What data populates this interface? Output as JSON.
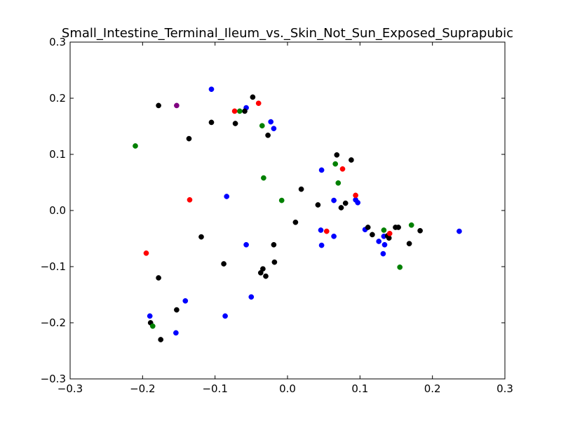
{
  "chart_data": {
    "type": "scatter",
    "title": "Small_Intestine_Terminal_Ileum_vs._Skin_Not_Sun_Exposed_Suprapubic",
    "xlabel": "",
    "ylabel": "",
    "xlim": [
      -0.3,
      0.3
    ],
    "ylim": [
      -0.3,
      0.3
    ],
    "xticks": [
      -0.3,
      -0.2,
      -0.1,
      0.0,
      0.1,
      0.2,
      0.3
    ],
    "yticks": [
      -0.3,
      -0.2,
      -0.1,
      0.0,
      0.1,
      0.2,
      0.3
    ],
    "xtick_labels": [
      "−0.3",
      "−0.2",
      "−0.1",
      "0.0",
      "0.1",
      "0.2",
      "0.3"
    ],
    "ytick_labels": [
      "−0.3",
      "−0.2",
      "−0.1",
      "0.0",
      "0.1",
      "0.2",
      "0.3"
    ],
    "grid": false,
    "legend": "none",
    "series": [
      {
        "color": "#0000ff",
        "points": [
          [
            -0.105,
            0.216
          ],
          [
            -0.057,
            0.183
          ],
          [
            -0.023,
            0.158
          ],
          [
            -0.019,
            0.146
          ],
          [
            0.047,
            0.072
          ],
          [
            -0.084,
            0.025
          ],
          [
            0.064,
            0.018
          ],
          [
            0.094,
            0.019
          ],
          [
            0.097,
            0.014
          ],
          [
            0.046,
            -0.035
          ],
          [
            0.064,
            -0.046
          ],
          [
            0.107,
            -0.034
          ],
          [
            0.126,
            -0.055
          ],
          [
            0.133,
            -0.046
          ],
          [
            0.134,
            -0.061
          ],
          [
            0.132,
            -0.077
          ],
          [
            0.237,
            -0.037
          ],
          [
            0.047,
            -0.062
          ],
          [
            -0.057,
            -0.061
          ],
          [
            -0.05,
            -0.154
          ],
          [
            -0.086,
            -0.188
          ],
          [
            -0.141,
            -0.161
          ],
          [
            -0.19,
            -0.188
          ],
          [
            -0.154,
            -0.218
          ]
        ]
      },
      {
        "color": "#000000",
        "points": [
          [
            -0.178,
            0.187
          ],
          [
            -0.048,
            0.202
          ],
          [
            -0.059,
            0.177
          ],
          [
            -0.105,
            0.157
          ],
          [
            -0.072,
            0.155
          ],
          [
            -0.027,
            0.134
          ],
          [
            -0.136,
            0.128
          ],
          [
            0.068,
            0.099
          ],
          [
            0.088,
            0.09
          ],
          [
            0.019,
            0.038
          ],
          [
            0.042,
            0.01
          ],
          [
            0.074,
            0.005
          ],
          [
            0.08,
            0.013
          ],
          [
            0.011,
            -0.021
          ],
          [
            0.111,
            -0.03
          ],
          [
            0.117,
            -0.043
          ],
          [
            0.138,
            -0.045
          ],
          [
            0.14,
            -0.049
          ],
          [
            0.149,
            -0.03
          ],
          [
            0.153,
            -0.03
          ],
          [
            0.168,
            -0.059
          ],
          [
            0.183,
            -0.036
          ],
          [
            -0.119,
            -0.047
          ],
          [
            -0.088,
            -0.095
          ],
          [
            -0.019,
            -0.061
          ],
          [
            -0.018,
            -0.092
          ],
          [
            -0.034,
            -0.104
          ],
          [
            -0.037,
            -0.111
          ],
          [
            -0.03,
            -0.117
          ],
          [
            -0.178,
            -0.12
          ],
          [
            -0.153,
            -0.177
          ],
          [
            -0.189,
            -0.2
          ],
          [
            -0.175,
            -0.23
          ]
        ]
      },
      {
        "color": "#008000",
        "points": [
          [
            -0.21,
            0.115
          ],
          [
            -0.066,
            0.177
          ],
          [
            -0.035,
            0.151
          ],
          [
            -0.033,
            0.058
          ],
          [
            -0.008,
            0.018
          ],
          [
            0.066,
            0.083
          ],
          [
            0.07,
            0.049
          ],
          [
            0.133,
            -0.035
          ],
          [
            0.171,
            -0.026
          ],
          [
            0.155,
            -0.101
          ],
          [
            -0.186,
            -0.206
          ]
        ]
      },
      {
        "color": "#ff0000",
        "points": [
          [
            -0.073,
            0.177
          ],
          [
            -0.04,
            0.191
          ],
          [
            0.076,
            0.074
          ],
          [
            0.094,
            0.027
          ],
          [
            -0.135,
            0.019
          ],
          [
            0.054,
            -0.037
          ],
          [
            0.141,
            -0.041
          ],
          [
            -0.195,
            -0.076
          ]
        ]
      },
      {
        "color": "#800080",
        "points": [
          [
            -0.153,
            0.187
          ]
        ]
      }
    ]
  }
}
